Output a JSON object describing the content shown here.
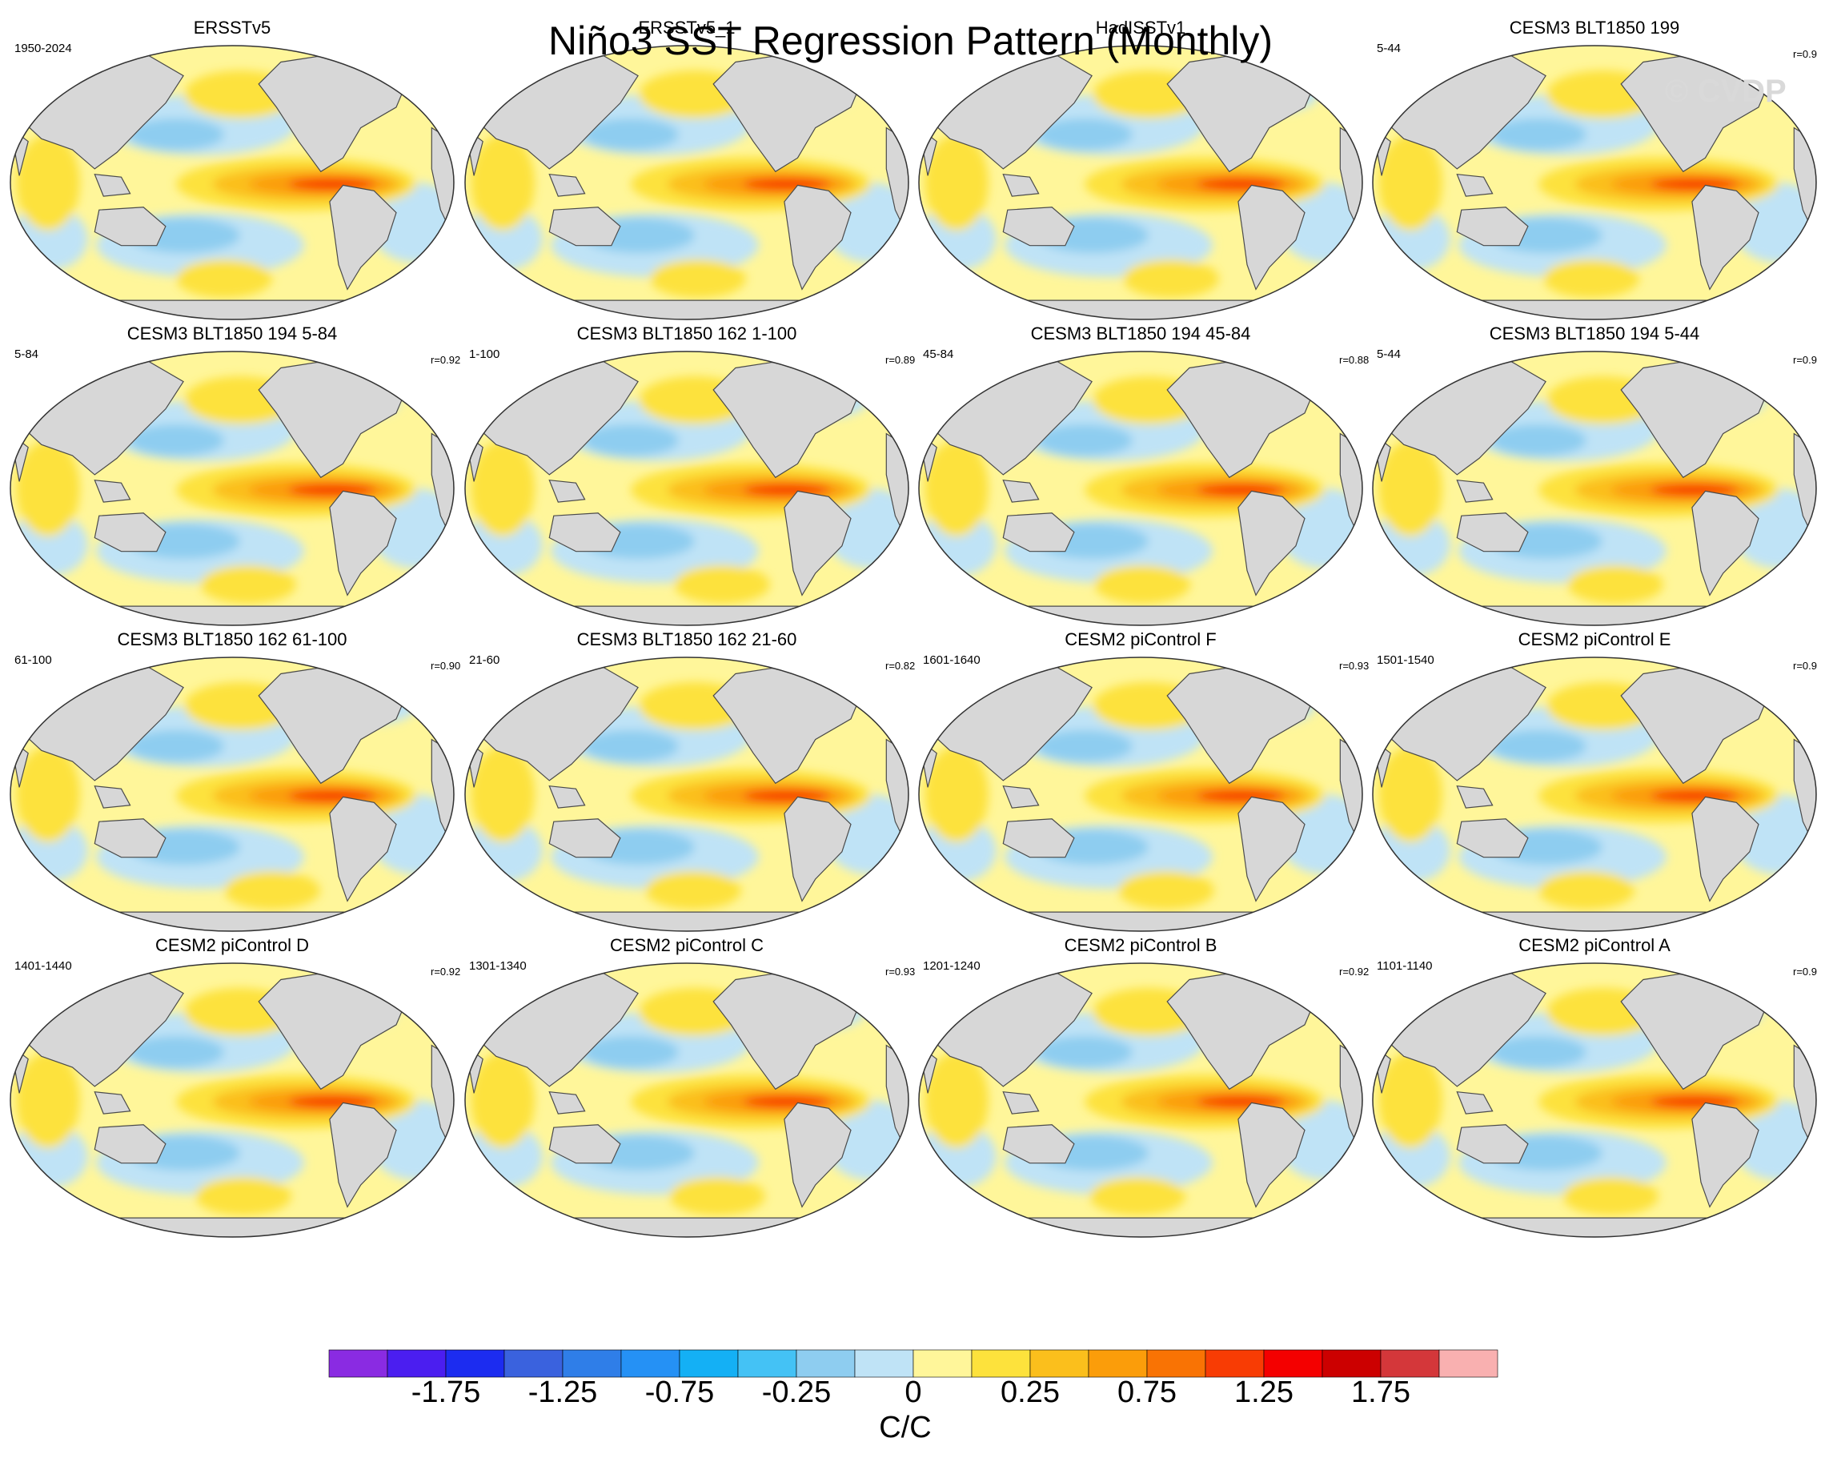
{
  "title": "Niño3 SST Regression Pattern (Monthly)",
  "watermark": "© CVDP",
  "colors": {
    "land": "#d7d7d7",
    "coast": "#4a4a4a",
    "levels": [
      "#8a2be2",
      "#4b1ef0",
      "#1c2cf0",
      "#3a62de",
      "#2f7ee8",
      "#2591f5",
      "#14b0f5",
      "#44c2f5",
      "#8ecdf0",
      "#bfe3f6",
      "#fff69a",
      "#fde23c",
      "#fbbf1c",
      "#fb9d0a",
      "#f97304",
      "#f83c04",
      "#f40000",
      "#cc0000",
      "#d4373a",
      "#f9b0b0"
    ]
  },
  "chart_data": {
    "type": "heatmap",
    "title": "Niño3 SST Regression Pattern (Monthly)",
    "projection": "Robinson (global, Pacific-centered)",
    "panels": [
      {
        "name": "ERSSTv5",
        "period": "1950-2024",
        "r": ""
      },
      {
        "name": "ERSSTv5_1",
        "period": "",
        "r": ""
      },
      {
        "name": "HadISSTv1",
        "period": "",
        "r": ""
      },
      {
        "name": "CESM3 BLT1850 199",
        "period": "5-44",
        "r": "r=0.9"
      },
      {
        "name": "CESM3 BLT1850 194 5-84",
        "period": "5-84",
        "r": "r=0.92"
      },
      {
        "name": "CESM3 BLT1850 162 1-100",
        "period": "1-100",
        "r": "r=0.89"
      },
      {
        "name": "CESM3 BLT1850 194 45-84",
        "period": "45-84",
        "r": "r=0.88"
      },
      {
        "name": "CESM3 BLT1850 194 5-44",
        "period": "5-44",
        "r": "r=0.9"
      },
      {
        "name": "CESM3 BLT1850 162 61-100",
        "period": "61-100",
        "r": "r=0.90"
      },
      {
        "name": "CESM3 BLT1850 162 21-60",
        "period": "21-60",
        "r": "r=0.82"
      },
      {
        "name": "CESM2 piControl F",
        "period": "1601-1640",
        "r": "r=0.93"
      },
      {
        "name": "CESM2 piControl E",
        "period": "1501-1540",
        "r": "r=0.9"
      },
      {
        "name": "CESM2 piControl D",
        "period": "1401-1440",
        "r": "r=0.92"
      },
      {
        "name": "CESM2 piControl C",
        "period": "1301-1340",
        "r": "r=0.93"
      },
      {
        "name": "CESM2 piControl B",
        "period": "1201-1240",
        "r": "r=0.92"
      },
      {
        "name": "CESM2 piControl A",
        "period": "1101-1140",
        "r": "r=0.9"
      }
    ],
    "colorbar": {
      "units": "C/C",
      "levels": [
        -2.0,
        -1.75,
        -1.5,
        -1.25,
        -1.0,
        -0.75,
        -0.5,
        -0.25,
        -0.1,
        0,
        0.1,
        0.25,
        0.5,
        0.75,
        1.0,
        1.25,
        1.5,
        1.75,
        2.0
      ],
      "tick_labels": [
        "-1.75",
        "-1.25",
        "-0.75",
        "-0.25",
        "0",
        "0.25",
        "0.75",
        "1.25",
        "1.75"
      ],
      "tick_boundary_index": [
        1,
        3,
        5,
        7,
        9,
        11,
        13,
        15,
        17
      ]
    }
  }
}
